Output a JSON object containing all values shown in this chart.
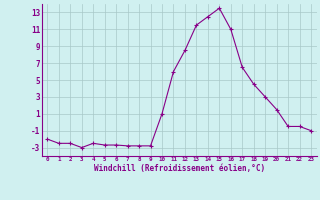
{
  "x": [
    0,
    1,
    2,
    3,
    4,
    5,
    6,
    7,
    8,
    9,
    10,
    11,
    12,
    13,
    14,
    15,
    16,
    17,
    18,
    19,
    20,
    21,
    22,
    23
  ],
  "y": [
    -2.0,
    -2.5,
    -2.5,
    -3.0,
    -2.5,
    -2.7,
    -2.7,
    -2.8,
    -2.8,
    -2.8,
    1.0,
    6.0,
    8.5,
    11.5,
    12.5,
    13.5,
    11.0,
    6.5,
    4.5,
    3.0,
    1.5,
    -0.5,
    -0.5,
    -1.0
  ],
  "line_color": "#880088",
  "marker": "+",
  "marker_size": 3,
  "marker_lw": 0.8,
  "line_width": 0.8,
  "bg_color": "#d0f0f0",
  "grid_color": "#a8c8c8",
  "xlabel": "Windchill (Refroidissement éolien,°C)",
  "xlim": [
    -0.5,
    23.5
  ],
  "ylim": [
    -4.0,
    14.0
  ],
  "yticks": [
    -3,
    -1,
    1,
    3,
    5,
    7,
    9,
    11,
    13
  ],
  "xticks": [
    0,
    1,
    2,
    3,
    4,
    5,
    6,
    7,
    8,
    9,
    10,
    11,
    12,
    13,
    14,
    15,
    16,
    17,
    18,
    19,
    20,
    21,
    22,
    23
  ],
  "tick_color": "#880088",
  "label_color": "#880088",
  "x_fontsize": 4.2,
  "y_fontsize": 5.5,
  "xlabel_fontsize": 5.5
}
